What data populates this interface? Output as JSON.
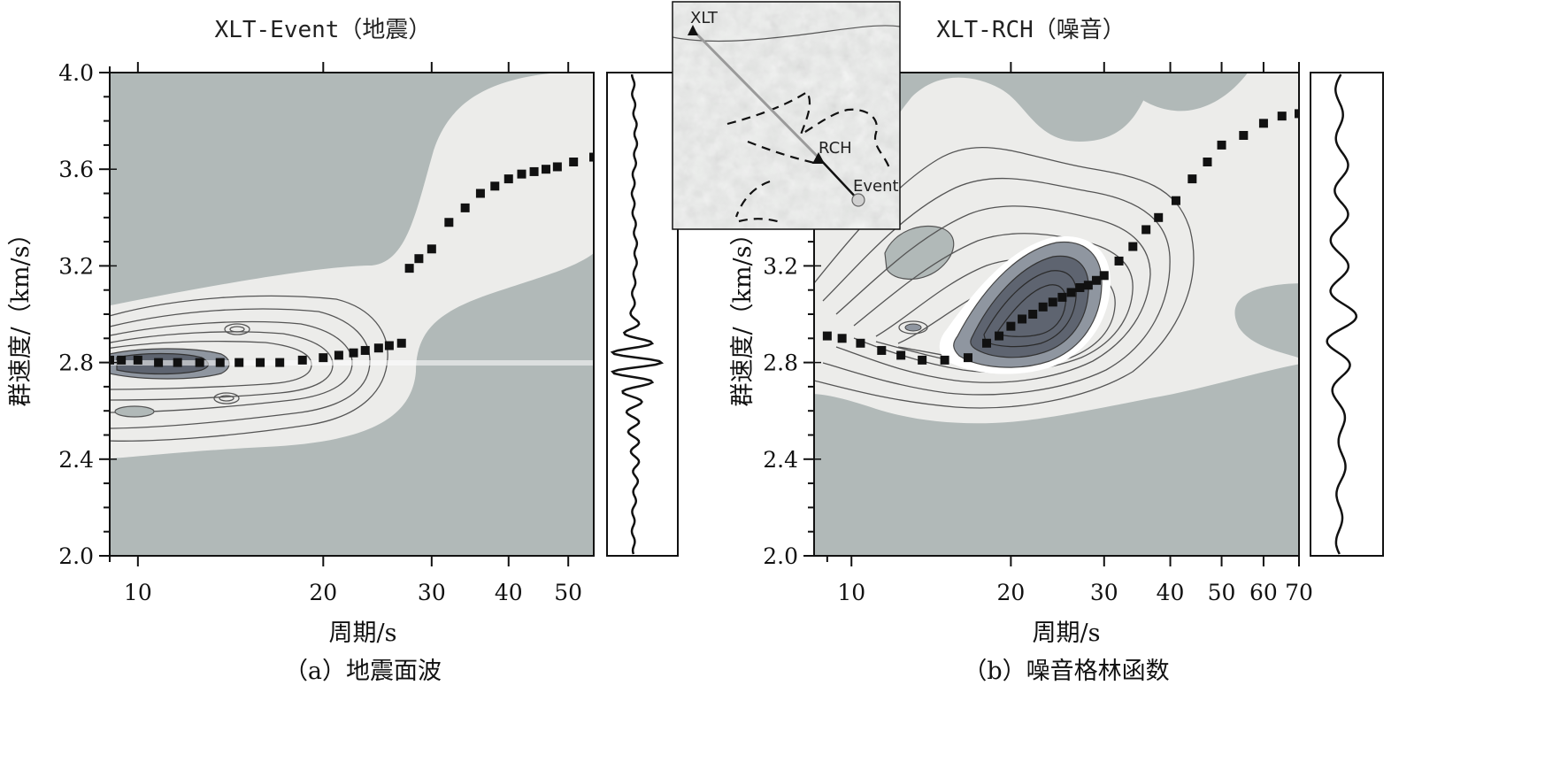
{
  "chart_data": [
    {
      "type": "heatmap",
      "panel": "a",
      "title": "XLT-Event（地震）",
      "caption": "（a）地震面波",
      "xlabel": "周期/s",
      "ylabel": "群速度/（km/s）",
      "x_scale": "log",
      "xlim": [
        9,
        55
      ],
      "ylim": [
        2.0,
        4.0
      ],
      "x_ticks": [
        10,
        20,
        30,
        40,
        50
      ],
      "y_ticks": [
        2.0,
        2.4,
        2.8,
        3.2,
        3.6,
        4.0
      ],
      "colors": {
        "background": "#b1b9b8",
        "light": "#ececea",
        "band": "#ffffff",
        "dark": "#5e6470",
        "mid": "#8f96a0"
      },
      "dispersion": {
        "x": [
          9,
          9.4,
          10,
          10.8,
          11.6,
          12.6,
          13.6,
          14.6,
          15.8,
          17,
          18.5,
          20,
          21.2,
          22.4,
          23.4,
          24.6,
          25.6,
          26.8,
          27.6,
          28.6,
          30,
          32,
          34,
          36,
          38,
          40,
          42,
          44,
          46,
          48,
          51,
          55
        ],
        "y": [
          2.81,
          2.81,
          2.81,
          2.8,
          2.8,
          2.8,
          2.8,
          2.8,
          2.8,
          2.8,
          2.81,
          2.82,
          2.83,
          2.84,
          2.85,
          2.86,
          2.87,
          2.88,
          3.19,
          3.23,
          3.27,
          3.38,
          3.44,
          3.5,
          3.53,
          3.56,
          3.58,
          3.59,
          3.6,
          3.61,
          3.63,
          3.65
        ]
      },
      "map_inset": {
        "stations": [
          "XLT",
          "RCH",
          "Event"
        ]
      }
    },
    {
      "type": "heatmap",
      "panel": "b",
      "title": "XLT-RCH（噪音）",
      "caption": "（b）噪音格林函数",
      "xlabel": "周期/s",
      "ylabel": "群速度/（km/s）",
      "x_scale": "log",
      "xlim": [
        8.5,
        70
      ],
      "ylim": [
        2.0,
        4.0
      ],
      "x_ticks": [
        10,
        20,
        30,
        40,
        50,
        60,
        70
      ],
      "y_ticks": [
        2.0,
        2.4,
        2.8,
        3.2,
        3.6,
        4.0
      ],
      "colors": {
        "background": "#b1b9b8",
        "light": "#ececea",
        "band": "#ffffff",
        "dark": "#5e6470",
        "mid": "#8f96a0"
      },
      "dispersion": {
        "x": [
          9,
          9.6,
          10.4,
          11.4,
          12.4,
          13.6,
          15,
          16.6,
          18,
          19,
          20,
          21,
          22,
          23,
          24,
          25,
          26,
          27,
          28,
          29,
          30,
          32,
          34,
          36,
          38,
          41,
          44,
          47,
          50,
          55,
          60,
          65,
          70
        ],
        "y": [
          2.91,
          2.9,
          2.88,
          2.85,
          2.83,
          2.81,
          2.81,
          2.82,
          2.88,
          2.91,
          2.95,
          2.98,
          3.0,
          3.03,
          3.05,
          3.07,
          3.09,
          3.11,
          3.12,
          3.14,
          3.16,
          3.22,
          3.28,
          3.35,
          3.4,
          3.47,
          3.56,
          3.63,
          3.7,
          3.74,
          3.79,
          3.82,
          3.83
        ]
      }
    }
  ]
}
